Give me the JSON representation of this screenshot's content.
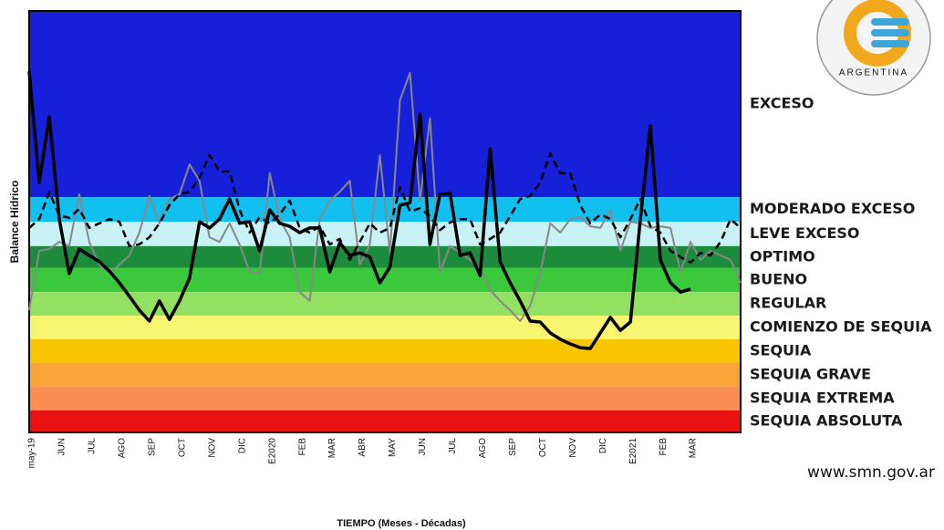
{
  "chart_data": {
    "type": "line",
    "y_label": "Balance Hídrico",
    "x_label": "TIEMPO (Meses - Décadas)",
    "website": "www.smn.gov.ar",
    "logo_text": "ARGENTINA",
    "ylim": [
      0,
      100
    ],
    "categories": [
      "may-19",
      null,
      null,
      "JUN",
      null,
      null,
      "JUL",
      null,
      null,
      "AGO",
      null,
      null,
      "SEP",
      null,
      null,
      "OCT",
      null,
      null,
      "NOV",
      null,
      null,
      "DIC",
      null,
      null,
      "E2020",
      null,
      null,
      "FEB",
      null,
      null,
      "MAR",
      null,
      null,
      "ABR",
      null,
      null,
      "MAY",
      null,
      null,
      "JUN",
      null,
      null,
      "JUL",
      null,
      null,
      "AGO",
      null,
      null,
      "SEP",
      null,
      null,
      "OCT",
      null,
      null,
      "NOV",
      null,
      null,
      "DIC",
      null,
      null,
      "E2021",
      null,
      null,
      "FEB",
      null,
      null,
      "MAR",
      null,
      null,
      null,
      null,
      null
    ],
    "bands": [
      {
        "label": "EXCESO",
        "color": "#1520d8",
        "range": [
          55.8,
          100
        ]
      },
      {
        "label": "MODERADO EXCESO",
        "color": "#12c0f0",
        "range": [
          50,
          55.8
        ]
      },
      {
        "label": "LEVE EXCESO",
        "color": "#c8f2f6",
        "range": [
          44.2,
          50
        ]
      },
      {
        "label": "OPTIMO",
        "color": "#1c8c3c",
        "range": [
          39,
          44.2
        ]
      },
      {
        "label": "BUENO",
        "color": "#3cc83c",
        "range": [
          33.3,
          39
        ]
      },
      {
        "label": "REGULAR",
        "color": "#92e062",
        "range": [
          27.7,
          33.3
        ]
      },
      {
        "label": "COMIENZO DE SEQUIA",
        "color": "#f8f670",
        "range": [
          22.1,
          27.7
        ]
      },
      {
        "label": "SEQUIA",
        "color": "#f8c600",
        "range": [
          16.5,
          22.1
        ]
      },
      {
        "label": "SEQUIA GRAVE",
        "color": "#f8a436",
        "range": [
          10.8,
          16.5
        ]
      },
      {
        "label": "SEQUIA EXTREMA",
        "color": "#f88e52",
        "range": [
          5.2,
          10.8
        ]
      },
      {
        "label": "SEQUIA ABSOLUTA",
        "color": "#e81212",
        "range": [
          0,
          5.2
        ]
      }
    ],
    "series": [
      {
        "color": "#888888",
        "width": 2,
        "dashed": false,
        "values": [
          29,
          43.1,
          43.5,
          45.2,
          44.2,
          56.5,
          45.2,
          39.8,
          37.7,
          39.8,
          42,
          47.4,
          56.1,
          49.6,
          55.4,
          56.5,
          63.6,
          59.7,
          46.3,
          45.2,
          49.6,
          44.6,
          38.1,
          37.7,
          61.5,
          50.6,
          46.3,
          33.3,
          31.2,
          50.6,
          55,
          57.1,
          59.7,
          39.8,
          44.6,
          65.8,
          42.6,
          78.8,
          85.3,
          55,
          74.5,
          38.1,
          44.2,
          42.6,
          40.9,
          38.7,
          33.8,
          31.2,
          29,
          26.4,
          30.1,
          37.7,
          49.6,
          47.4,
          50.6,
          51.1,
          48.9,
          48.5,
          52.8,
          43.1,
          50,
          49.6,
          48.5,
          48.9,
          48.5,
          38.1,
          45.2,
          40.9,
          43.1,
          42,
          40.9,
          35.5
        ]
      },
      {
        "color": "#000000",
        "width": 2.5,
        "dashed": true,
        "values": [
          48.5,
          50.6,
          57,
          51.5,
          50.9,
          53,
          48.5,
          49.6,
          50.6,
          50,
          44.2,
          44.6,
          46.3,
          49.6,
          53.9,
          56.5,
          57.1,
          60.4,
          65.8,
          61.9,
          61.9,
          52.8,
          47.4,
          51.1,
          49.6,
          51.7,
          55,
          48.5,
          47.4,
          48.9,
          44.6,
          45.9,
          40.9,
          45.2,
          49.6,
          47.4,
          48.5,
          58.2,
          52.4,
          53.2,
          51.3,
          48,
          49.8,
          50.6,
          50.6,
          44.6,
          45.9,
          47.4,
          51.3,
          55.4,
          56.1,
          59.3,
          66.2,
          61.5,
          61.5,
          53.9,
          49.6,
          51.7,
          50.6,
          46.3,
          50.6,
          55.4,
          48.9,
          47.4,
          43.1,
          41.6,
          40.3,
          42.6,
          42,
          45.2,
          50.6,
          48.5
        ]
      },
      {
        "color": "#000000",
        "width": 3.5,
        "dashed": false,
        "values": [
          85.7,
          59.3,
          74.9,
          50.6,
          37.7,
          43.5,
          42,
          40.5,
          38.3,
          35.5,
          32.3,
          29,
          26.4,
          31.2,
          26.8,
          31.2,
          36.6,
          50,
          48.5,
          50.6,
          55.4,
          49.6,
          50,
          43.1,
          52.8,
          49.6,
          48.9,
          47.4,
          48.5,
          48.5,
          38.1,
          45,
          42,
          42.6,
          41.6,
          35.5,
          39.2,
          53.9,
          54.5,
          75.5,
          44.6,
          56.5,
          56.7,
          42,
          42.6,
          37.2,
          67.3,
          40.5,
          35.5,
          31.2,
          26.4,
          26.2,
          23.6,
          22.1,
          21,
          20.1,
          19.9,
          23.6,
          27.3,
          24.2,
          26.2,
          50.6,
          72.7,
          40.9,
          35.5,
          33.3,
          34,
          null,
          null,
          null,
          null,
          null
        ]
      }
    ]
  }
}
